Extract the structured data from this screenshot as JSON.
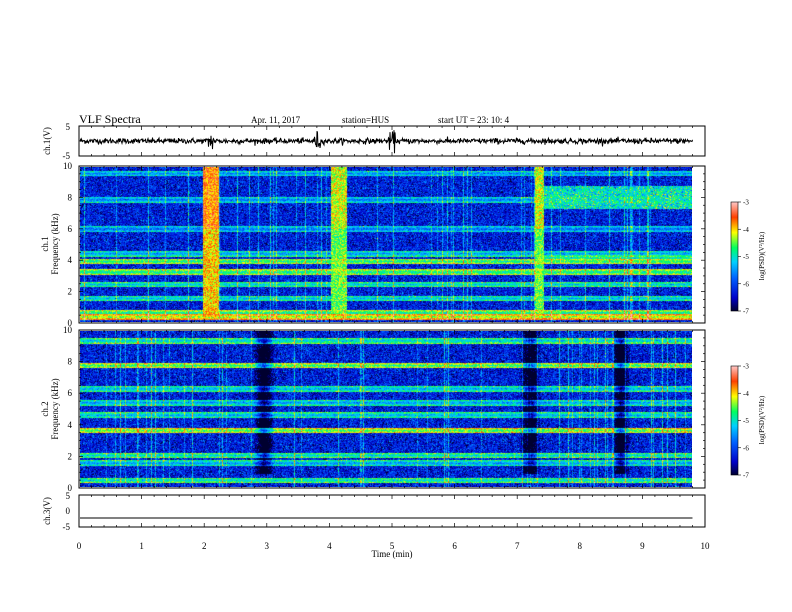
{
  "header": {
    "title": "VLF Spectra",
    "date": "Apr. 11, 2017",
    "station": "station=HUS",
    "start": "start  UT =  23: 10: 4"
  },
  "chart_data": [
    {
      "type": "line",
      "panel": "ch1-waveform",
      "ylabel": "ch.1(V)",
      "ylim": [
        -5,
        5
      ],
      "yticks": [
        "5",
        "-5"
      ],
      "xlim": [
        0,
        10
      ],
      "x": [
        0,
        9.8
      ],
      "values": [
        0,
        0
      ],
      "note": "noisy waveform near 0 V; spikes near 2.1, 3.8, 5.0 min"
    },
    {
      "type": "heatmap",
      "panel": "ch1-spectrogram",
      "ylabel_top": "ch.1",
      "ylabel": "Frequency (kHz)",
      "ylim": [
        0,
        10
      ],
      "yticks": [
        "0",
        "2",
        "4",
        "6",
        "8",
        "10"
      ],
      "xlim": [
        0,
        9.8
      ],
      "background_level": -6.3,
      "bands": [
        {
          "f": 0.3,
          "level": -4.5
        },
        {
          "f": 0.55,
          "level": -5.0
        },
        {
          "f": 1.5,
          "level": -5.4
        },
        {
          "f": 2.4,
          "level": -5.3
        },
        {
          "f": 3.2,
          "level": -5.0
        },
        {
          "f": 3.9,
          "level": -4.9
        },
        {
          "f": 4.4,
          "level": -5.6
        },
        {
          "f": 6.0,
          "level": -5.9
        },
        {
          "f": 7.9,
          "level": -5.8
        },
        {
          "f": 9.6,
          "level": -5.7
        }
      ],
      "bursts": [
        {
          "t": 2.1,
          "width": 0.25,
          "level": -4.5
        },
        {
          "t": 4.15,
          "width": 0.25,
          "level": -5.0
        },
        {
          "t": 7.35,
          "width": 0.15,
          "level": -5.0
        }
      ],
      "enhancement": {
        "t_start": 7.3,
        "t_end": 9.8,
        "f_low": 7.3,
        "f_high": 8.8,
        "level": -5.0
      }
    },
    {
      "type": "heatmap",
      "panel": "ch2-spectrogram",
      "ylabel_top": "ch.2",
      "ylabel": "Frequency (kHz)",
      "ylim": [
        0,
        10
      ],
      "yticks": [
        "0",
        "2",
        "4",
        "6",
        "8",
        "10"
      ],
      "xlim": [
        0,
        9.8
      ],
      "background_level": -6.3,
      "bands": [
        {
          "f": 0.4,
          "level": -5.2
        },
        {
          "f": 1.5,
          "level": -5.6
        },
        {
          "f": 2.0,
          "level": -5.2
        },
        {
          "f": 3.6,
          "level": -4.7
        },
        {
          "f": 4.6,
          "level": -5.5
        },
        {
          "f": 5.4,
          "level": -5.6
        },
        {
          "f": 6.3,
          "level": -5.5
        },
        {
          "f": 7.8,
          "level": -4.8
        },
        {
          "f": 9.4,
          "level": -5.3
        }
      ],
      "quiet_intervals": [
        {
          "t": 2.95,
          "width": 0.35
        },
        {
          "t": 7.2,
          "width": 0.35
        },
        {
          "t": 8.65,
          "width": 0.3
        }
      ]
    },
    {
      "type": "line",
      "panel": "ch3-waveform",
      "ylabel": "ch.3(V)",
      "ylim": [
        -5,
        5
      ],
      "yticks": [
        "5",
        "0",
        "-5"
      ],
      "xlim": [
        0,
        10
      ],
      "x": [
        0,
        9.8
      ],
      "values": [
        -2.2,
        -2.2
      ]
    },
    {
      "type": "colorbar",
      "label": "log(PSD)(V²/Hz)",
      "range": [
        -7,
        -3
      ],
      "ticks": [
        "-3",
        "-4",
        "-5",
        "-6",
        "-7"
      ]
    }
  ],
  "xaxis": {
    "label": "Time (min)",
    "ticks": [
      "0",
      "1",
      "2",
      "3",
      "4",
      "5",
      "6",
      "7",
      "8",
      "9",
      "10"
    ],
    "range": [
      0,
      10
    ]
  }
}
